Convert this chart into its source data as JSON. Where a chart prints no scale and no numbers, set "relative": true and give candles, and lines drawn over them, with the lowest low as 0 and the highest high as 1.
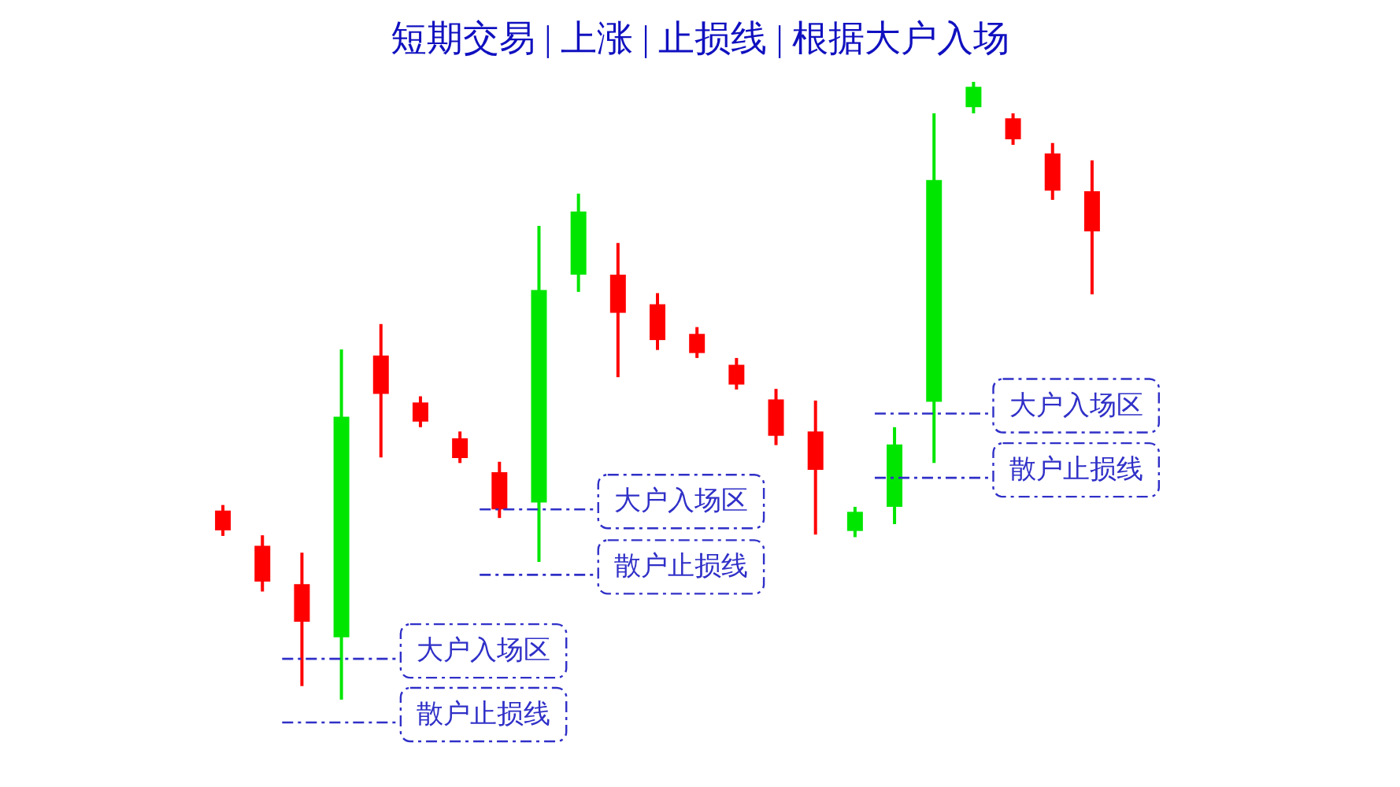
{
  "chart_data": {
    "type": "candlestick",
    "title": "短期交易 | 上涨 | 止损线 | 根据大户入场",
    "relative": true,
    "categories": [
      null,
      null,
      null,
      null,
      null,
      null,
      null,
      null,
      null,
      null,
      null,
      null,
      null,
      null,
      null,
      null,
      null,
      null,
      null,
      null,
      null,
      null,
      null
    ],
    "ohlc": [
      [
        0.306,
        0.315,
        0.265,
        0.274
      ],
      [
        0.249,
        0.266,
        0.175,
        0.191
      ],
      [
        0.187,
        0.238,
        0.022,
        0.126
      ],
      [
        0.101,
        0.567,
        0,
        0.458
      ],
      [
        0.557,
        0.608,
        0.392,
        0.495
      ],
      [
        0.481,
        0.491,
        0.441,
        0.45
      ],
      [
        0.423,
        0.434,
        0.383,
        0.391
      ],
      [
        0.368,
        0.385,
        0.294,
        0.308
      ],
      [
        0.319,
        0.767,
        0.223,
        0.663
      ],
      [
        0.688,
        0.819,
        0.66,
        0.79
      ],
      [
        0.688,
        0.739,
        0.522,
        0.626
      ],
      [
        0.64,
        0.658,
        0.566,
        0.582
      ],
      [
        0.592,
        0.603,
        0.553,
        0.561
      ],
      [
        0.542,
        0.553,
        0.502,
        0.51
      ],
      [
        0.486,
        0.503,
        0.412,
        0.427
      ],
      [
        0.434,
        0.484,
        0.267,
        0.372
      ],
      [
        0.273,
        0.312,
        0.263,
        0.304
      ],
      [
        0.312,
        0.441,
        0.284,
        0.413
      ],
      [
        0.482,
        0.949,
        0.383,
        0.841
      ],
      [
        0.959,
        1,
        0.949,
        0.992
      ],
      [
        0.941,
        0.949,
        0.898,
        0.907
      ],
      [
        0.884,
        0.901,
        0.809,
        0.824
      ],
      [
        0.823,
        0.873,
        0.656,
        0.758
      ]
    ],
    "colors": [
      "#ff0000",
      "#ff0000",
      "#ff0000",
      "#00e600",
      "#ff0000",
      "#ff0000",
      "#ff0000",
      "#ff0000",
      "#00e600",
      "#00e600",
      "#ff0000",
      "#ff0000",
      "#ff0000",
      "#ff0000",
      "#ff0000",
      "#ff0000",
      "#00e600",
      "#00e600",
      "#00e600",
      "#00e600",
      "#ff0000",
      "#ff0000",
      "#ff0000"
    ],
    "ref_lines": [
      {
        "axis": "y",
        "value": 0.066,
        "label": "大户入场区",
        "color": "#3030c8",
        "line_style": "dashed"
      },
      {
        "axis": "y",
        "value": -0.037,
        "label": "散户止损线",
        "color": "#3030c8",
        "line_style": "dashed"
      },
      {
        "axis": "y",
        "value": 0.308,
        "label": "大户入场区",
        "color": "#3030c8",
        "line_style": "dashed"
      },
      {
        "axis": "y",
        "value": 0.202,
        "label": "散户止损线",
        "color": "#3030c8",
        "line_style": "dashed"
      },
      {
        "axis": "y",
        "value": 0.463,
        "label": "大户入场区",
        "color": "#3030c8",
        "line_style": "dashed"
      },
      {
        "axis": "y",
        "value": 0.359,
        "label": "散户止损线",
        "color": "#3030c8",
        "line_style": "dashed"
      }
    ]
  }
}
